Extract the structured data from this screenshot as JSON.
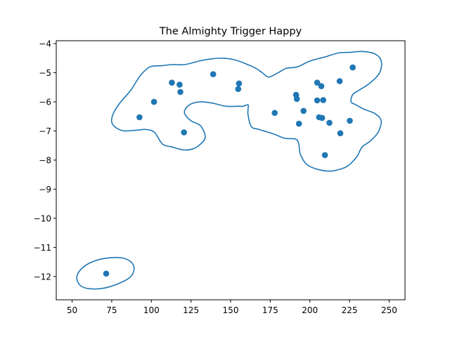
{
  "chart_data": {
    "type": "scatter",
    "title": "The Almighty Trigger Happy",
    "xlabel": "",
    "ylabel": "",
    "xlim": [
      40,
      260
    ],
    "ylim": [
      -12.8,
      -3.9
    ],
    "x_ticks": [
      50,
      75,
      100,
      125,
      150,
      175,
      200,
      225,
      250
    ],
    "y_ticks": [
      -4,
      -5,
      -6,
      -7,
      -8,
      -9,
      -10,
      -11,
      -12
    ],
    "x_tick_labels": [
      "50",
      "75",
      "100",
      "125",
      "150",
      "175",
      "200",
      "225",
      "250"
    ],
    "y_tick_labels": [
      "−4",
      "−5",
      "−6",
      "−7",
      "−8",
      "−9",
      "−10",
      "−11",
      "−12"
    ],
    "grid": false,
    "legend": "none",
    "point_color": "#1f77b4",
    "contour_color": "#1f77b4",
    "points": [
      {
        "x": 71.5,
        "y": -11.9
      },
      {
        "x": 92.5,
        "y": -6.53
      },
      {
        "x": 101.7,
        "y": -6.0
      },
      {
        "x": 112.9,
        "y": -5.34
      },
      {
        "x": 117.8,
        "y": -5.41
      },
      {
        "x": 118.3,
        "y": -5.66
      },
      {
        "x": 120.6,
        "y": -7.05
      },
      {
        "x": 139.0,
        "y": -5.05
      },
      {
        "x": 154.8,
        "y": -5.56
      },
      {
        "x": 155.3,
        "y": -5.37
      },
      {
        "x": 177.8,
        "y": -6.38
      },
      {
        "x": 191.3,
        "y": -5.76
      },
      {
        "x": 191.8,
        "y": -5.9
      },
      {
        "x": 193.1,
        "y": -6.75
      },
      {
        "x": 196.0,
        "y": -6.31
      },
      {
        "x": 204.6,
        "y": -5.34
      },
      {
        "x": 204.6,
        "y": -5.95
      },
      {
        "x": 205.8,
        "y": -6.53
      },
      {
        "x": 207.2,
        "y": -5.46
      },
      {
        "x": 207.7,
        "y": -6.55
      },
      {
        "x": 208.4,
        "y": -5.94
      },
      {
        "x": 209.5,
        "y": -7.83
      },
      {
        "x": 212.3,
        "y": -6.72
      },
      {
        "x": 218.8,
        "y": -5.29
      },
      {
        "x": 219.2,
        "y": -7.08
      },
      {
        "x": 225.2,
        "y": -6.65
      },
      {
        "x": 227.0,
        "y": -4.82
      }
    ],
    "contours": [
      [
        [
          174,
          -5.15
        ],
        [
          180,
          -5.0
        ],
        [
          185,
          -4.85
        ],
        [
          192,
          -4.8
        ],
        [
          200,
          -4.6
        ],
        [
          210,
          -4.45
        ],
        [
          218,
          -4.32
        ],
        [
          225,
          -4.3
        ],
        [
          233,
          -4.27
        ],
        [
          241,
          -4.35
        ],
        [
          245,
          -4.6
        ],
        [
          244,
          -5.0
        ],
        [
          238,
          -5.35
        ],
        [
          231,
          -5.6
        ],
        [
          227,
          -5.75
        ],
        [
          226,
          -6.0
        ],
        [
          229,
          -6.1
        ],
        [
          234,
          -6.25
        ],
        [
          241,
          -6.4
        ],
        [
          245,
          -6.65
        ],
        [
          243,
          -7.05
        ],
        [
          238,
          -7.35
        ],
        [
          233,
          -7.55
        ],
        [
          230,
          -7.85
        ],
        [
          227,
          -8.05
        ],
        [
          224,
          -8.2
        ],
        [
          220,
          -8.3
        ],
        [
          213,
          -8.38
        ],
        [
          205,
          -8.32
        ],
        [
          198,
          -8.15
        ],
        [
          194,
          -7.8
        ],
        [
          193,
          -7.45
        ],
        [
          191,
          -7.28
        ],
        [
          184,
          -7.25
        ],
        [
          177,
          -7.1
        ],
        [
          168,
          -6.95
        ],
        [
          163,
          -6.85
        ],
        [
          161,
          -6.45
        ],
        [
          161,
          -6.25
        ],
        [
          161,
          -6.1
        ],
        [
          158,
          -6.15
        ],
        [
          155,
          -6.15
        ],
        [
          147,
          -6.15
        ],
        [
          139,
          -6.05
        ],
        [
          132,
          -6.0
        ],
        [
          126,
          -6.05
        ],
        [
          122,
          -6.2
        ],
        [
          121,
          -6.4
        ],
        [
          125,
          -6.65
        ],
        [
          131,
          -6.82
        ],
        [
          134,
          -7.2
        ],
        [
          131,
          -7.45
        ],
        [
          126,
          -7.62
        ],
        [
          120,
          -7.65
        ],
        [
          113,
          -7.55
        ],
        [
          107,
          -7.45
        ],
        [
          102,
          -7.05
        ],
        [
          97,
          -6.95
        ],
        [
          91,
          -6.97
        ],
        [
          83,
          -7.0
        ],
        [
          78,
          -6.9
        ],
        [
          75,
          -6.7
        ],
        [
          76,
          -6.4
        ],
        [
          80,
          -6.05
        ],
        [
          87,
          -5.6
        ],
        [
          93,
          -5.1
        ],
        [
          99,
          -4.8
        ],
        [
          106,
          -4.76
        ],
        [
          113,
          -4.72
        ],
        [
          121,
          -4.72
        ],
        [
          130,
          -4.6
        ],
        [
          137,
          -4.53
        ],
        [
          145,
          -4.5
        ],
        [
          152,
          -4.55
        ],
        [
          160,
          -4.7
        ],
        [
          166,
          -4.85
        ],
        [
          170,
          -5.0
        ],
        [
          174,
          -5.15
        ]
      ],
      [
        [
          53,
          -12.0
        ],
        [
          57,
          -11.68
        ],
        [
          65,
          -11.45
        ],
        [
          75,
          -11.35
        ],
        [
          83,
          -11.38
        ],
        [
          88,
          -11.55
        ],
        [
          89,
          -11.8
        ],
        [
          86,
          -12.05
        ],
        [
          79,
          -12.25
        ],
        [
          70,
          -12.4
        ],
        [
          61,
          -12.42
        ],
        [
          55,
          -12.3
        ],
        [
          53,
          -12.0
        ]
      ]
    ]
  }
}
